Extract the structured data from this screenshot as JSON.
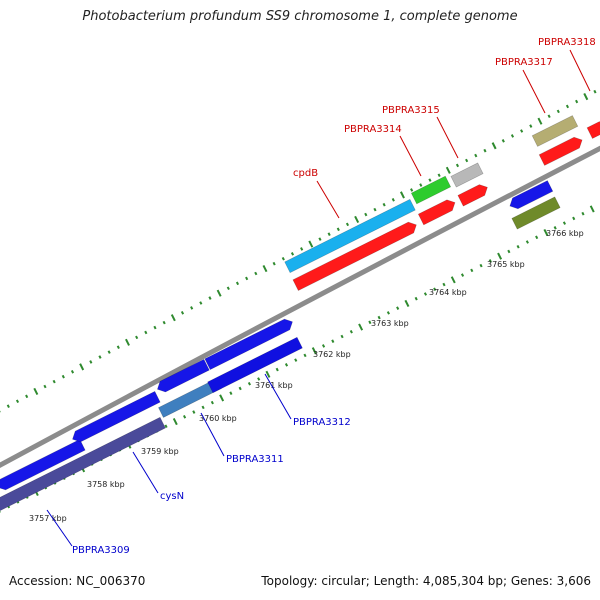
{
  "title": "Photobacterium profundum SS9 chromosome 1, complete genome",
  "accession": "Accession: NC_006370",
  "summary": "Topology: circular; Length: 4,085,304 bp; Genes: 3,606",
  "kbp_labels": [
    {
      "text": "3757 kbp",
      "pos": 3757
    },
    {
      "text": "3758 kbp",
      "pos": 3758
    },
    {
      "text": "3759 kbp",
      "pos": 3759
    },
    {
      "text": "3760 kbp",
      "pos": 3760
    },
    {
      "text": "3761 kbp",
      "pos": 3761
    },
    {
      "text": "3762 kbp",
      "pos": 3762
    },
    {
      "text": "3763 kbp",
      "pos": 3763
    },
    {
      "text": "3764 kbp",
      "pos": 3764
    },
    {
      "text": "3765 kbp",
      "pos": 3765
    },
    {
      "text": "3766 kbp",
      "pos": 3766
    }
  ],
  "features": [
    {
      "name": "PBPRA3309",
      "color": "#0000cc",
      "strand": "minus"
    },
    {
      "name": "cysN",
      "color": "#0000cc",
      "strand": "minus"
    },
    {
      "name": "PBPRA3311",
      "color": "#0000cc",
      "strand": "minus"
    },
    {
      "name": "PBPRA3312",
      "color": "#0000cc",
      "strand": "minus"
    },
    {
      "name": "cpdB",
      "color": "#cc0000",
      "strand": "plus"
    },
    {
      "name": "PBPRA3314",
      "color": "#cc0000",
      "strand": "plus"
    },
    {
      "name": "PBPRA3315",
      "color": "#cc0000",
      "strand": "plus"
    },
    {
      "name": "PBPRA3317",
      "color": "#cc0000",
      "strand": "plus"
    },
    {
      "name": "PBPRA3318",
      "color": "#cc0000",
      "strand": "plus"
    }
  ],
  "colors": {
    "backbone": "#8c8c8c",
    "cds_plus": "#ff1a1a",
    "cds_minus": "#1010e0",
    "gene_blue": "#1616e8",
    "gene_navy": "#4a4a9a",
    "gene_cyan": "#1ab0ee",
    "gene_green": "#2ecc2e",
    "gene_silver": "#b8b8b8",
    "gene_olive": "#6f8a2a",
    "gene_khaki": "#b5ad72",
    "tick": "#2f8a2f"
  }
}
